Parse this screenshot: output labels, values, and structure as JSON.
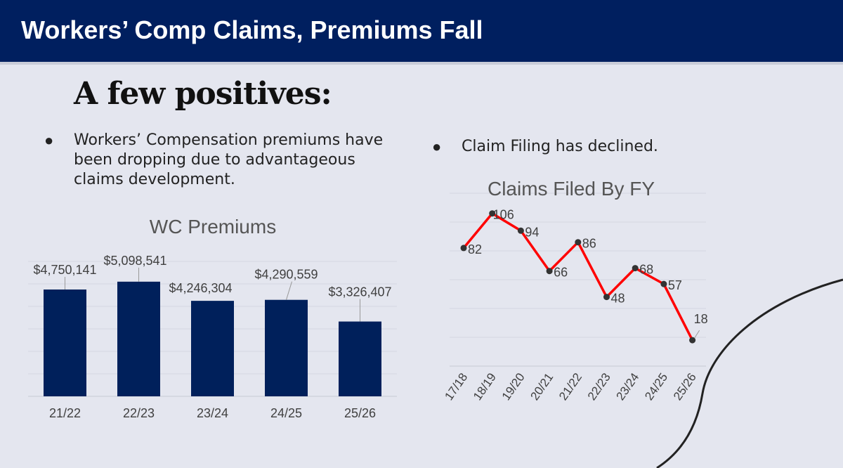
{
  "slide": {
    "title": "Workers’ Comp Claims, Premiums Fall",
    "heading": "A few positives:",
    "bullet_glyph": "●",
    "bullets": [
      "Workers’ Compensation premiums have been dropping due to advantageous claims development.",
      "Claim Filing has declined."
    ]
  },
  "colors": {
    "title_bar": "#001f5f",
    "background": "#e4e6ef",
    "bar_fill": "#00205b",
    "line": "#ff0000",
    "marker": "#333333"
  },
  "chart_data": [
    {
      "type": "bar",
      "title": "WC Premiums",
      "categories": [
        "21/22",
        "22/23",
        "23/24",
        "24/25",
        "25/26"
      ],
      "values": [
        4750141,
        5098541,
        4246304,
        4290559,
        3326407
      ],
      "data_labels": [
        "$4,750,141",
        "$5,098,541",
        "$4,246,304",
        "$4,290,559",
        "$3,326,407"
      ],
      "ylim": [
        0,
        6000000
      ],
      "grid": true,
      "legend": "none"
    },
    {
      "type": "line",
      "title": "Claims Filed By FY",
      "categories": [
        "17/18",
        "18/19",
        "19/20",
        "20/21",
        "21/22",
        "22/23",
        "23/24",
        "24/25",
        "25/26"
      ],
      "values": [
        82,
        106,
        94,
        66,
        86,
        48,
        68,
        57,
        18
      ],
      "ylim": [
        0,
        120
      ],
      "grid": true,
      "legend": "none"
    }
  ]
}
